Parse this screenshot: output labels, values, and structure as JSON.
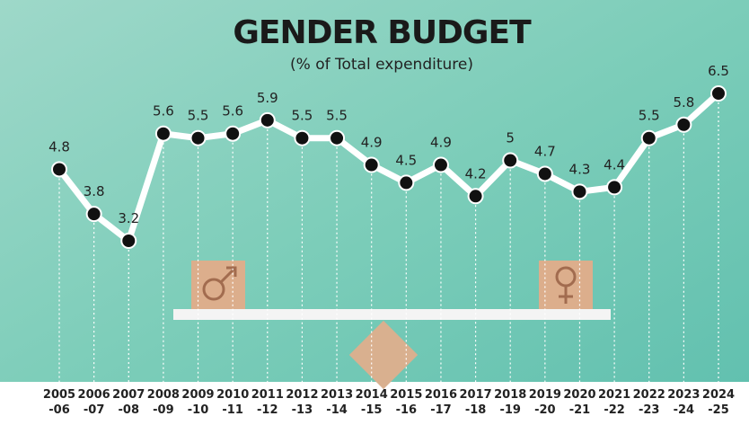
{
  "chart_data": {
    "type": "line",
    "title": "GENDER BUDGET",
    "subtitle": "(% of Total expenditure)",
    "categories": [
      [
        "2005",
        "-06"
      ],
      [
        "2006",
        "-07"
      ],
      [
        "2007",
        "-08"
      ],
      [
        "2008",
        "-09"
      ],
      [
        "2009",
        "-10"
      ],
      [
        "2010",
        "-11"
      ],
      [
        "2011",
        "-12"
      ],
      [
        "2012",
        "-13"
      ],
      [
        "2013",
        "-14"
      ],
      [
        "2014",
        "-15"
      ],
      [
        "2015",
        "-16"
      ],
      [
        "2016",
        "-17"
      ],
      [
        "2017",
        "-18"
      ],
      [
        "2018",
        "-19"
      ],
      [
        "2019",
        "-20"
      ],
      [
        "2020",
        "-21"
      ],
      [
        "2021",
        "-22"
      ],
      [
        "2022",
        "-23"
      ],
      [
        "2023",
        "-24"
      ],
      [
        "2024",
        "-25"
      ]
    ],
    "values": [
      4.8,
      3.8,
      3.2,
      5.6,
      5.5,
      5.6,
      5.9,
      5.5,
      5.5,
      4.9,
      4.5,
      4.9,
      4.2,
      5,
      4.7,
      4.3,
      4.4,
      5.5,
      5.8,
      6.5
    ],
    "color": "#ffffff"
  }
}
